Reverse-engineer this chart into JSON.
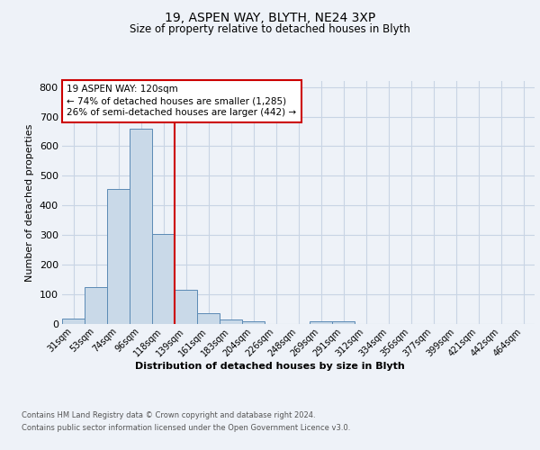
{
  "title1": "19, ASPEN WAY, BLYTH, NE24 3XP",
  "title2": "Size of property relative to detached houses in Blyth",
  "xlabel": "Distribution of detached houses by size in Blyth",
  "ylabel": "Number of detached properties",
  "footnote1": "Contains HM Land Registry data © Crown copyright and database right 2024.",
  "footnote2": "Contains public sector information licensed under the Open Government Licence v3.0.",
  "bar_labels": [
    "31sqm",
    "53sqm",
    "74sqm",
    "96sqm",
    "118sqm",
    "139sqm",
    "161sqm",
    "183sqm",
    "204sqm",
    "226sqm",
    "248sqm",
    "269sqm",
    "291sqm",
    "312sqm",
    "334sqm",
    "356sqm",
    "377sqm",
    "399sqm",
    "421sqm",
    "442sqm",
    "464sqm"
  ],
  "bar_values": [
    18,
    125,
    455,
    660,
    303,
    115,
    35,
    15,
    10,
    0,
    0,
    10,
    10,
    0,
    0,
    0,
    0,
    0,
    0,
    0,
    0
  ],
  "bar_color": "#c9d9e8",
  "bar_edge_color": "#5b8ab5",
  "grid_color": "#c8d4e4",
  "annotation_line1": "19 ASPEN WAY: 120sqm",
  "annotation_line2": "← 74% of detached houses are smaller (1,285)",
  "annotation_line3": "26% of semi-detached houses are larger (442) →",
  "annotation_box_color": "#ffffff",
  "annotation_box_edge": "#cc0000",
  "vline_x": 4.5,
  "vline_color": "#cc0000",
  "ylim": [
    0,
    820
  ],
  "yticks": [
    0,
    100,
    200,
    300,
    400,
    500,
    600,
    700,
    800
  ],
  "background_color": "#eef2f8"
}
